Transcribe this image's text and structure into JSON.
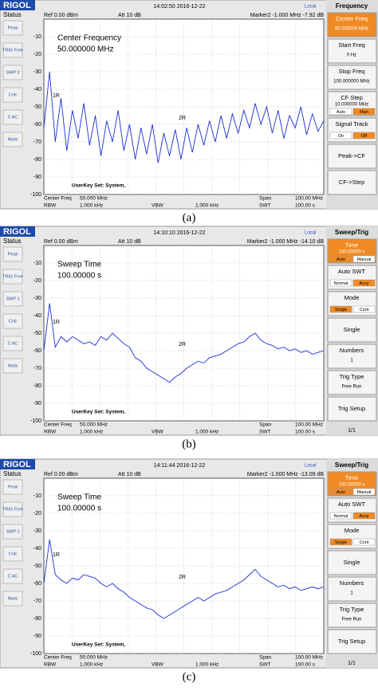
{
  "panels": [
    {
      "header": {
        "logo": "RIGOL",
        "status": "Status",
        "ref": "Ref 0.00 dBm",
        "att": "Att 10 dB",
        "time": "14:02:50 2016-12-22",
        "marker": "Marker2 -1.000 MHz -7.92 dB",
        "local": "Local"
      },
      "status_items": [
        "Peak",
        "TRIG Free",
        "SWP 0",
        "Cntr",
        "C AC",
        "Mark"
      ],
      "ylim": [
        -100,
        0
      ],
      "yticks": [
        -10,
        -20,
        -30,
        -40,
        -50,
        -60,
        -70,
        -80,
        -90,
        -100
      ],
      "annotation": [
        "Center Frequency",
        "50.000000 MHz"
      ],
      "markers": [
        "1R",
        "2R"
      ],
      "footer": {
        "userkey": "UserKey Set:   System,",
        "center_label": "Center Freq",
        "center": "50.000 MHz",
        "span_label": "Span",
        "span": "100.00 MHz",
        "rbw_label": "RBW",
        "rbw": "1.000 kHz",
        "vbw_label": "VBW",
        "vbw": "1.000 kHz",
        "swt_label": "SWT",
        "swt": "100.00 s"
      },
      "trace": {
        "color": "#1c2fd6",
        "values": [
          -62,
          -30,
          -70,
          -45,
          -75,
          -52,
          -68,
          -48,
          -72,
          -55,
          -78,
          -58,
          -70,
          -52,
          -75,
          -60,
          -80,
          -62,
          -77,
          -60,
          -82,
          -65,
          -78,
          -63,
          -80,
          -62,
          -76,
          -60,
          -72,
          -58,
          -70,
          -55,
          -68,
          -54,
          -65,
          -52,
          -62,
          -48,
          -60,
          -50,
          -65,
          -52,
          -68,
          -55,
          -62,
          -50,
          -66,
          -54,
          -64,
          -58
        ]
      },
      "menu": {
        "title": "Frequency",
        "items": [
          {
            "label": "Center Freq",
            "value": "50.000000 MHz",
            "active": true
          },
          {
            "label": "Start Freq",
            "value": "0 Hz"
          },
          {
            "label": "Stop Freq",
            "value": "100.000000 MHz"
          },
          {
            "label": "CF Step",
            "value": "10.000000 MHz",
            "options": [
              "Auto",
              "Man"
            ]
          },
          {
            "label": "Signal Track",
            "options": [
              "On",
              "Off"
            ]
          },
          {
            "label": "Peak->CF"
          },
          {
            "label": "CF->Step"
          }
        ]
      },
      "caption": "(a)"
    },
    {
      "header": {
        "logo": "RIGOL",
        "status": "Status",
        "ref": "Ref 0.00 dBm",
        "att": "Att 10 dB",
        "time": "14:10:10 2016-12-22",
        "marker": "Marker2 -1.000 MHz -14.10 dB",
        "local": "Local"
      },
      "status_items": [
        "Peak",
        "TRIG Free",
        "SWP 1",
        "Cntr",
        "C AC",
        "Mark"
      ],
      "ylim": [
        -100,
        0
      ],
      "yticks": [
        -10,
        -20,
        -30,
        -40,
        -50,
        -60,
        -70,
        -80,
        -90,
        -100
      ],
      "annotation": [
        "Sweep Time",
        "100.00000 s"
      ],
      "markers": [
        "1R",
        "2R"
      ],
      "footer": {
        "userkey": "UserKey Set:   System,",
        "center_label": "Center Freq",
        "center": "50.000 MHz",
        "span_label": "Span",
        "span": "100.00 MHz",
        "rbw_label": "RBW",
        "rbw": "1.000 kHz",
        "vbw_label": "VBW",
        "vbw": "1.000 kHz",
        "swt_label": "SWT",
        "swt": "100.00 s"
      },
      "trace": {
        "color": "#1c2fd6",
        "values": [
          -60,
          -33,
          -58,
          -52,
          -55,
          -52,
          -54,
          -56,
          -55,
          -57,
          -52,
          -54,
          -50,
          -53,
          -56,
          -58,
          -64,
          -66,
          -70,
          -72,
          -74,
          -76,
          -78,
          -75,
          -73,
          -70,
          -68,
          -66,
          -67,
          -64,
          -63,
          -62,
          -60,
          -58,
          -56,
          -55,
          -52,
          -50,
          -54,
          -56,
          -57,
          -59,
          -58,
          -60,
          -59,
          -61,
          -60,
          -62,
          -61,
          -60
        ]
      },
      "menu": {
        "title": "Sweep/Trig",
        "items": [
          {
            "label": "Time",
            "value": "100.00000 s",
            "options": [
              "Auto",
              "Manual"
            ],
            "active": true
          },
          {
            "label": "Auto SWT",
            "options": [
              "Normal",
              "Accy"
            ]
          },
          {
            "label": "Mode",
            "options": [
              "Single",
              "Cont"
            ]
          },
          {
            "label": "Single"
          },
          {
            "label": "Numbers",
            "value": "1"
          },
          {
            "label": "Trig Type",
            "value": "Free Run"
          },
          {
            "label": "Trig Setup"
          }
        ],
        "page": "1/1"
      },
      "caption": "(b)"
    },
    {
      "header": {
        "logo": "RIGOL",
        "status": "Status",
        "ref": "Ref 0.00 dBm",
        "att": "Att 10 dB",
        "time": "14:11:44 2016-12-22",
        "marker": "Marker2 -1.000 MHz -13.09 dB",
        "local": "Local"
      },
      "status_items": [
        "Peak",
        "TRIG Free",
        "SWP 1",
        "Cntr",
        "C AC",
        "Mark"
      ],
      "ylim": [
        -100,
        0
      ],
      "yticks": [
        -10,
        -20,
        -30,
        -40,
        -50,
        -60,
        -70,
        -80,
        -90,
        -100
      ],
      "annotation": [
        "Sweep Time",
        "100.00000 s"
      ],
      "markers": [
        "1R",
        "2R"
      ],
      "footer": {
        "userkey": "UserKey Set:   System,",
        "center_label": "Center Freq",
        "center": "50.000 MHz",
        "span_label": "Span",
        "span": "100.00 MHz",
        "rbw_label": "RBW",
        "rbw": "1.000 kHz",
        "vbw_label": "VBW",
        "vbw": "1.000 kHz",
        "swt_label": "SWT",
        "swt": "100.00 s"
      },
      "trace": {
        "color": "#1c2fd6",
        "values": [
          -60,
          -35,
          -55,
          -58,
          -60,
          -57,
          -58,
          -55,
          -56,
          -57,
          -60,
          -62,
          -60,
          -63,
          -65,
          -68,
          -70,
          -72,
          -74,
          -75,
          -78,
          -80,
          -78,
          -76,
          -74,
          -72,
          -70,
          -68,
          -70,
          -68,
          -66,
          -65,
          -64,
          -62,
          -60,
          -58,
          -55,
          -52,
          -56,
          -58,
          -60,
          -62,
          -61,
          -63,
          -62,
          -64,
          -63,
          -62,
          -63,
          -62
        ]
      },
      "menu": {
        "title": "Sweep/Trig",
        "items": [
          {
            "label": "Time",
            "value": "100.00000 s",
            "options": [
              "Auto",
              "Manual"
            ],
            "active": true
          },
          {
            "label": "Auto SWT",
            "options": [
              "Normal",
              "Accy"
            ]
          },
          {
            "label": "Mode",
            "options": [
              "Single",
              "Cont"
            ]
          },
          {
            "label": "Single"
          },
          {
            "label": "Numbers",
            "value": "1"
          },
          {
            "label": "Trig Type",
            "value": "Free Run"
          },
          {
            "label": "Trig Setup"
          }
        ],
        "page": "1/1"
      },
      "caption": "(c)"
    }
  ]
}
